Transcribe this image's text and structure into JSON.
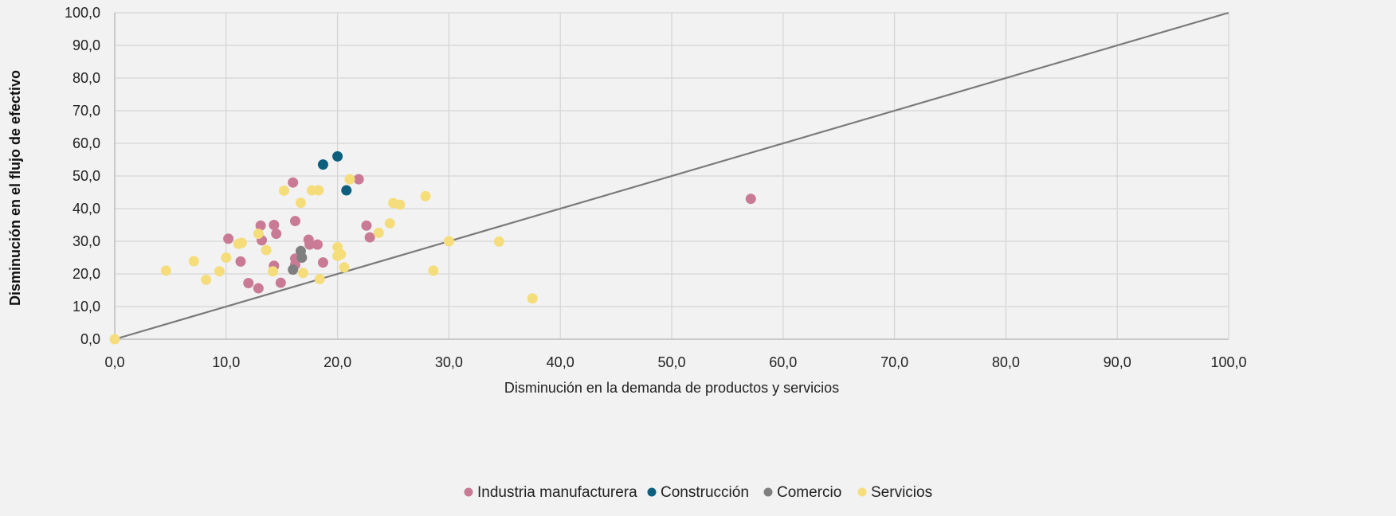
{
  "chart_data": {
    "type": "scatter",
    "xlabel": "Disminución en la demanda de productos y servicios",
    "ylabel": "Disminución en el flujo de efectivo",
    "xlim": [
      0,
      100
    ],
    "ylim": [
      0,
      100
    ],
    "x_ticks": [
      "0,0",
      "10,0",
      "20,0",
      "30,0",
      "40,0",
      "50,0",
      "60,0",
      "70,0",
      "80,0",
      "90,0",
      "100,0"
    ],
    "y_ticks": [
      "0,0",
      "10,0",
      "20,0",
      "30,0",
      "40,0",
      "50,0",
      "60,0",
      "70,0",
      "80,0",
      "90,0",
      "100,0"
    ],
    "grid": true,
    "legend_position": "bottom",
    "reference_line": {
      "from": [
        0,
        0
      ],
      "to": [
        100,
        100
      ],
      "color": "#7a7a7a"
    },
    "series": [
      {
        "name": "Industria manufacturera",
        "color": "#c97a95",
        "points": [
          [
            10.2,
            30.8
          ],
          [
            11.3,
            23.8
          ],
          [
            12.0,
            17.2
          ],
          [
            12.9,
            15.6
          ],
          [
            13.1,
            34.8
          ],
          [
            13.2,
            30.3
          ],
          [
            14.3,
            35.0
          ],
          [
            14.5,
            32.3
          ],
          [
            14.3,
            22.5
          ],
          [
            14.9,
            17.3
          ],
          [
            16.0,
            48.0
          ],
          [
            16.2,
            36.2
          ],
          [
            16.2,
            24.7
          ],
          [
            16.2,
            22.8
          ],
          [
            17.4,
            30.5
          ],
          [
            17.5,
            29.0
          ],
          [
            18.2,
            29.0
          ],
          [
            18.7,
            23.5
          ],
          [
            21.9,
            49.0
          ],
          [
            22.6,
            34.8
          ],
          [
            22.9,
            31.2
          ],
          [
            57.1,
            43.0
          ]
        ]
      },
      {
        "name": "Construcción",
        "color": "#0e5f7e",
        "points": [
          [
            18.7,
            53.5
          ],
          [
            20.0,
            56.0
          ],
          [
            20.8,
            45.6
          ]
        ]
      },
      {
        "name": "Comercio",
        "color": "#7f7f7f",
        "points": [
          [
            16.0,
            21.3
          ],
          [
            16.7,
            27.0
          ],
          [
            16.8,
            25.0
          ]
        ]
      },
      {
        "name": "Servicios",
        "color": "#f5dd7c",
        "points": [
          [
            0.0,
            0.0
          ],
          [
            4.6,
            21.0
          ],
          [
            7.1,
            23.9
          ],
          [
            8.2,
            18.2
          ],
          [
            9.4,
            20.8
          ],
          [
            10.0,
            25.0
          ],
          [
            11.1,
            29.2
          ],
          [
            11.4,
            29.5
          ],
          [
            12.9,
            32.3
          ],
          [
            13.6,
            27.3
          ],
          [
            14.2,
            20.8
          ],
          [
            15.2,
            45.5
          ],
          [
            16.7,
            41.8
          ],
          [
            16.9,
            20.3
          ],
          [
            17.7,
            45.6
          ],
          [
            18.3,
            45.6
          ],
          [
            18.4,
            18.4
          ],
          [
            20.0,
            28.2
          ],
          [
            20.0,
            25.5
          ],
          [
            20.3,
            26.0
          ],
          [
            20.6,
            22.0
          ],
          [
            21.1,
            49.0
          ],
          [
            23.7,
            32.6
          ],
          [
            24.7,
            35.5
          ],
          [
            25.0,
            41.7
          ],
          [
            25.6,
            41.2
          ],
          [
            27.9,
            43.8
          ],
          [
            28.6,
            21.0
          ],
          [
            30.0,
            30.0
          ],
          [
            34.5,
            29.9
          ],
          [
            37.5,
            12.5
          ]
        ]
      }
    ]
  }
}
